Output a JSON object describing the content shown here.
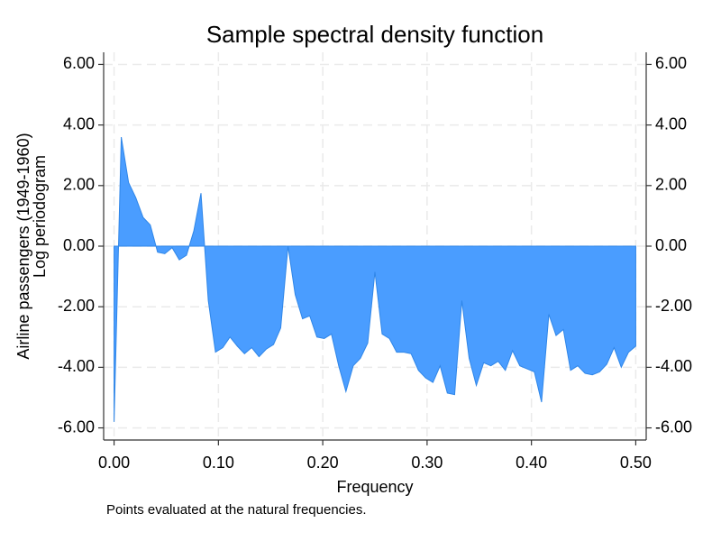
{
  "chart_data": {
    "type": "area",
    "title": "Sample spectral density function",
    "xlabel": "Frequency",
    "ylabel": [
      "Airline passengers (1949-1960)",
      "Log periodogram"
    ],
    "note": "Points evaluated at the natural frequencies.",
    "x": [
      0,
      0.0069,
      0.0139,
      0.0208,
      0.0278,
      0.0347,
      0.0417,
      0.0486,
      0.0556,
      0.0625,
      0.0694,
      0.0764,
      0.0833,
      0.0903,
      0.0972,
      0.1042,
      0.1111,
      0.1181,
      0.125,
      0.1319,
      0.1389,
      0.1458,
      0.1528,
      0.1597,
      0.1667,
      0.1736,
      0.1806,
      0.1875,
      0.1944,
      0.2014,
      0.2083,
      0.2153,
      0.2222,
      0.2292,
      0.2361,
      0.2431,
      0.25,
      0.2569,
      0.2639,
      0.2708,
      0.2778,
      0.2847,
      0.2917,
      0.2986,
      0.3056,
      0.3125,
      0.3194,
      0.3264,
      0.3333,
      0.3403,
      0.3472,
      0.3542,
      0.3611,
      0.3681,
      0.375,
      0.3819,
      0.3889,
      0.3958,
      0.4028,
      0.4097,
      0.4167,
      0.4236,
      0.4306,
      0.4375,
      0.4444,
      0.4514,
      0.4583,
      0.4653,
      0.4722,
      0.4792,
      0.4861,
      0.4931,
      0.5
    ],
    "series": [
      {
        "name": "Log periodogram",
        "color": "#4a9dff",
        "values": [
          -5.8,
          3.6,
          2.1,
          1.6,
          0.95,
          0.7,
          -0.2,
          -0.25,
          -0.05,
          -0.45,
          -0.3,
          0.5,
          1.75,
          -1.8,
          -3.5,
          -3.35,
          -3.0,
          -3.3,
          -3.55,
          -3.35,
          -3.65,
          -3.4,
          -3.25,
          -2.7,
          0.0,
          -1.6,
          -2.4,
          -2.3,
          -3.0,
          -3.05,
          -2.9,
          -3.95,
          -4.8,
          -3.95,
          -3.7,
          -3.2,
          -0.85,
          -2.9,
          -3.05,
          -3.5,
          -3.5,
          -3.55,
          -4.1,
          -4.35,
          -4.5,
          -3.95,
          -4.85,
          -4.9,
          -1.8,
          -3.7,
          -4.6,
          -3.85,
          -3.95,
          -3.8,
          -4.1,
          -3.45,
          -3.95,
          -4.05,
          -4.15,
          -5.15,
          -2.25,
          -2.95,
          -2.75,
          -4.1,
          -3.95,
          -4.2,
          -4.25,
          -4.15,
          -3.9,
          -3.35,
          -4.0,
          -3.5,
          -3.3
        ]
      }
    ],
    "xlim": [
      -0.01,
      0.51
    ],
    "xticks": [
      {
        "value": 0,
        "label": "0.00"
      },
      {
        "value": 0.1,
        "label": "0.10"
      },
      {
        "value": 0.2,
        "label": "0.20"
      },
      {
        "value": 0.3,
        "label": "0.30"
      },
      {
        "value": 0.4,
        "label": "0.40"
      },
      {
        "value": 0.5,
        "label": "0.50"
      }
    ],
    "ylim": [
      -6.4,
      6.4
    ],
    "yticks": [
      {
        "value": -6,
        "label": "-6.00"
      },
      {
        "value": -4,
        "label": "-4.00"
      },
      {
        "value": -2,
        "label": "-2.00"
      },
      {
        "value": 0,
        "label": "0.00"
      },
      {
        "value": 2,
        "label": "2.00"
      },
      {
        "value": 4,
        "label": "4.00"
      },
      {
        "value": 6,
        "label": "6.00"
      }
    ],
    "y2lim": [
      -6.4,
      6.4
    ],
    "y2ticks": [
      {
        "value": -6,
        "label": "-6.00"
      },
      {
        "value": -4,
        "label": "-4.00"
      },
      {
        "value": -2,
        "label": "-2.00"
      },
      {
        "value": 0,
        "label": "0.00"
      },
      {
        "value": 2,
        "label": "2.00"
      },
      {
        "value": 4,
        "label": "4.00"
      },
      {
        "value": 6,
        "label": "6.00"
      }
    ],
    "grid": true
  }
}
